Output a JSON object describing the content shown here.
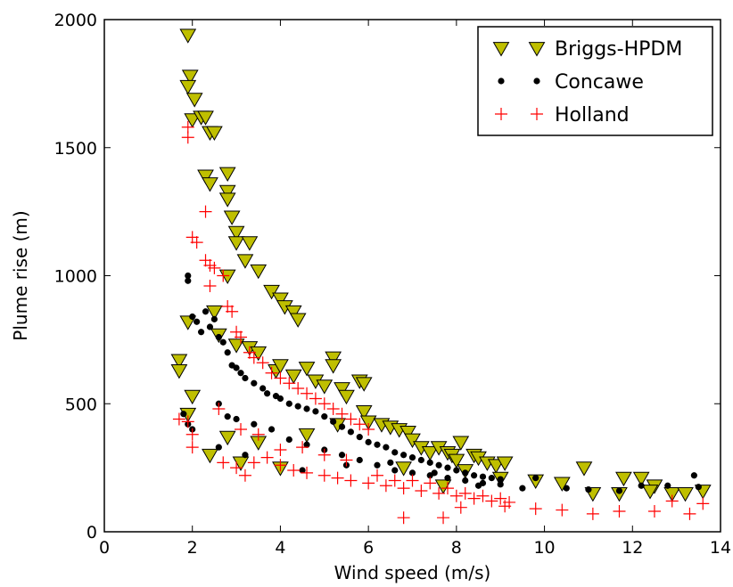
{
  "chart_data": {
    "type": "scatter",
    "title": "",
    "xlabel": "Wind speed (m/s)",
    "ylabel": "Plume rise (m)",
    "xlim": [
      0,
      14
    ],
    "ylim": [
      0,
      2000
    ],
    "xticks": [
      0,
      2,
      4,
      6,
      8,
      10,
      12,
      14
    ],
    "yticks": [
      0,
      500,
      1000,
      1500,
      2000
    ],
    "grid": false,
    "legend_position": "top-right",
    "series": [
      {
        "name": "Briggs-HPDM",
        "marker": "triangle-down",
        "color": "#bfbf00",
        "edge": "#000000",
        "points": [
          [
            1.9,
            1940
          ],
          [
            1.95,
            1780
          ],
          [
            1.9,
            1740
          ],
          [
            2.05,
            1690
          ],
          [
            2.0,
            1610
          ],
          [
            2.2,
            1620
          ],
          [
            2.3,
            1620
          ],
          [
            2.4,
            1560
          ],
          [
            2.5,
            1560
          ],
          [
            2.3,
            1390
          ],
          [
            2.4,
            1360
          ],
          [
            2.8,
            1400
          ],
          [
            2.8,
            1330
          ],
          [
            2.8,
            1300
          ],
          [
            2.9,
            1230
          ],
          [
            3.0,
            1170
          ],
          [
            3.0,
            1130
          ],
          [
            3.3,
            1130
          ],
          [
            3.2,
            1060
          ],
          [
            3.5,
            1020
          ],
          [
            3.8,
            940
          ],
          [
            4.0,
            910
          ],
          [
            4.1,
            880
          ],
          [
            4.3,
            860
          ],
          [
            4.4,
            830
          ],
          [
            1.7,
            670
          ],
          [
            1.7,
            630
          ],
          [
            1.9,
            820
          ],
          [
            2.5,
            860
          ],
          [
            2.6,
            770
          ],
          [
            2.8,
            1000
          ],
          [
            3.0,
            730
          ],
          [
            3.3,
            720
          ],
          [
            3.5,
            700
          ],
          [
            3.9,
            630
          ],
          [
            4.0,
            650
          ],
          [
            4.3,
            610
          ],
          [
            4.6,
            640
          ],
          [
            4.8,
            590
          ],
          [
            5.0,
            570
          ],
          [
            5.2,
            680
          ],
          [
            5.2,
            650
          ],
          [
            5.4,
            560
          ],
          [
            5.5,
            530
          ],
          [
            5.8,
            590
          ],
          [
            5.9,
            580
          ],
          [
            5.9,
            470
          ],
          [
            6.0,
            430
          ],
          [
            6.3,
            420
          ],
          [
            6.5,
            410
          ],
          [
            6.7,
            400
          ],
          [
            6.9,
            390
          ],
          [
            7.0,
            360
          ],
          [
            7.2,
            330
          ],
          [
            7.4,
            310
          ],
          [
            7.6,
            330
          ],
          [
            7.8,
            310
          ],
          [
            7.9,
            300
          ],
          [
            8.0,
            280
          ],
          [
            8.1,
            350
          ],
          [
            8.4,
            300
          ],
          [
            8.5,
            290
          ],
          [
            8.7,
            270
          ],
          [
            8.9,
            260
          ],
          [
            9.1,
            270
          ],
          [
            2.0,
            530
          ],
          [
            1.9,
            460
          ],
          [
            2.4,
            300
          ],
          [
            2.8,
            370
          ],
          [
            3.1,
            270
          ],
          [
            3.5,
            350
          ],
          [
            4.0,
            250
          ],
          [
            4.6,
            380
          ],
          [
            5.3,
            420
          ],
          [
            6.8,
            250
          ],
          [
            7.7,
            180
          ],
          [
            8.2,
            240
          ],
          [
            9.0,
            210
          ],
          [
            9.8,
            200
          ],
          [
            10.4,
            190
          ],
          [
            10.9,
            250
          ],
          [
            11.1,
            150
          ],
          [
            11.8,
            210
          ],
          [
            12.2,
            210
          ],
          [
            12.5,
            180
          ],
          [
            12.9,
            150
          ],
          [
            13.2,
            150
          ],
          [
            13.6,
            160
          ],
          [
            11.7,
            150
          ],
          [
            12.4,
            160
          ]
        ]
      },
      {
        "name": "Concawe",
        "marker": "circle",
        "color": "#000000",
        "points": [
          [
            1.9,
            1000
          ],
          [
            1.9,
            980
          ],
          [
            2.0,
            840
          ],
          [
            2.1,
            820
          ],
          [
            2.2,
            780
          ],
          [
            2.3,
            860
          ],
          [
            2.4,
            800
          ],
          [
            2.5,
            830
          ],
          [
            2.6,
            760
          ],
          [
            2.7,
            740
          ],
          [
            2.8,
            700
          ],
          [
            2.9,
            650
          ],
          [
            3.0,
            640
          ],
          [
            3.1,
            620
          ],
          [
            3.2,
            600
          ],
          [
            3.4,
            580
          ],
          [
            3.6,
            560
          ],
          [
            3.7,
            540
          ],
          [
            3.9,
            530
          ],
          [
            4.0,
            520
          ],
          [
            4.2,
            500
          ],
          [
            4.4,
            490
          ],
          [
            4.6,
            480
          ],
          [
            4.8,
            470
          ],
          [
            5.0,
            450
          ],
          [
            5.2,
            430
          ],
          [
            5.4,
            410
          ],
          [
            5.6,
            390
          ],
          [
            5.8,
            370
          ],
          [
            6.0,
            350
          ],
          [
            6.2,
            340
          ],
          [
            6.4,
            330
          ],
          [
            6.6,
            310
          ],
          [
            6.8,
            300
          ],
          [
            7.0,
            290
          ],
          [
            7.2,
            280
          ],
          [
            7.4,
            270
          ],
          [
            7.6,
            260
          ],
          [
            7.8,
            250
          ],
          [
            8.0,
            240
          ],
          [
            8.2,
            230
          ],
          [
            8.4,
            220
          ],
          [
            8.6,
            215
          ],
          [
            8.8,
            210
          ],
          [
            9.0,
            205
          ],
          [
            1.8,
            460
          ],
          [
            1.9,
            420
          ],
          [
            2.0,
            400
          ],
          [
            2.6,
            500
          ],
          [
            2.8,
            450
          ],
          [
            3.0,
            440
          ],
          [
            3.4,
            420
          ],
          [
            3.8,
            400
          ],
          [
            4.2,
            360
          ],
          [
            4.6,
            340
          ],
          [
            5.0,
            320
          ],
          [
            5.4,
            300
          ],
          [
            5.8,
            280
          ],
          [
            6.2,
            260
          ],
          [
            6.6,
            240
          ],
          [
            7.0,
            230
          ],
          [
            7.4,
            220
          ],
          [
            7.8,
            210
          ],
          [
            8.2,
            200
          ],
          [
            8.6,
            190
          ],
          [
            9.0,
            185
          ],
          [
            9.8,
            210
          ],
          [
            10.5,
            170
          ],
          [
            11.0,
            165
          ],
          [
            11.7,
            160
          ],
          [
            12.2,
            180
          ],
          [
            12.8,
            180
          ],
          [
            13.4,
            220
          ],
          [
            13.5,
            175
          ],
          [
            2.6,
            330
          ],
          [
            3.2,
            300
          ],
          [
            4.5,
            240
          ],
          [
            5.5,
            260
          ],
          [
            6.5,
            270
          ],
          [
            7.5,
            230
          ],
          [
            8.5,
            180
          ],
          [
            9.5,
            170
          ]
        ]
      },
      {
        "name": "Holland",
        "marker": "plus",
        "color": "#ff0000",
        "points": [
          [
            1.9,
            1580
          ],
          [
            1.9,
            1540
          ],
          [
            2.0,
            1150
          ],
          [
            2.1,
            1130
          ],
          [
            2.3,
            1250
          ],
          [
            2.3,
            1060
          ],
          [
            2.4,
            1040
          ],
          [
            2.5,
            1030
          ],
          [
            2.4,
            960
          ],
          [
            2.7,
            1000
          ],
          [
            2.8,
            880
          ],
          [
            2.9,
            860
          ],
          [
            3.0,
            780
          ],
          [
            3.1,
            760
          ],
          [
            3.3,
            700
          ],
          [
            3.4,
            680
          ],
          [
            3.6,
            660
          ],
          [
            3.8,
            620
          ],
          [
            4.0,
            600
          ],
          [
            4.2,
            580
          ],
          [
            4.4,
            560
          ],
          [
            4.6,
            540
          ],
          [
            4.8,
            520
          ],
          [
            5.0,
            500
          ],
          [
            5.2,
            480
          ],
          [
            5.4,
            460
          ],
          [
            5.6,
            440
          ],
          [
            5.8,
            420
          ],
          [
            6.0,
            400
          ],
          [
            1.7,
            440
          ],
          [
            1.9,
            430
          ],
          [
            2.0,
            380
          ],
          [
            2.0,
            330
          ],
          [
            2.6,
            480
          ],
          [
            2.7,
            270
          ],
          [
            3.0,
            250
          ],
          [
            3.2,
            220
          ],
          [
            3.4,
            270
          ],
          [
            3.7,
            290
          ],
          [
            4.0,
            260
          ],
          [
            4.3,
            240
          ],
          [
            4.6,
            230
          ],
          [
            5.0,
            220
          ],
          [
            5.3,
            210
          ],
          [
            5.6,
            200
          ],
          [
            6.0,
            190
          ],
          [
            6.4,
            180
          ],
          [
            6.8,
            170
          ],
          [
            7.2,
            160
          ],
          [
            7.6,
            150
          ],
          [
            8.0,
            140
          ],
          [
            8.4,
            130
          ],
          [
            8.8,
            120
          ],
          [
            9.2,
            115
          ],
          [
            6.8,
            55
          ],
          [
            7.7,
            55
          ],
          [
            8.1,
            95
          ],
          [
            9.1,
            100
          ],
          [
            9.8,
            90
          ],
          [
            10.4,
            85
          ],
          [
            11.1,
            70
          ],
          [
            11.7,
            80
          ],
          [
            12.5,
            80
          ],
          [
            13.3,
            70
          ],
          [
            13.6,
            110
          ],
          [
            12.9,
            120
          ],
          [
            3.1,
            400
          ],
          [
            3.5,
            380
          ],
          [
            4.0,
            320
          ],
          [
            4.5,
            330
          ],
          [
            5.0,
            300
          ],
          [
            5.5,
            280
          ],
          [
            6.2,
            220
          ],
          [
            6.6,
            200
          ],
          [
            7.0,
            200
          ],
          [
            7.4,
            190
          ],
          [
            7.8,
            170
          ],
          [
            8.2,
            150
          ],
          [
            8.6,
            140
          ],
          [
            9.0,
            130
          ]
        ]
      }
    ]
  }
}
